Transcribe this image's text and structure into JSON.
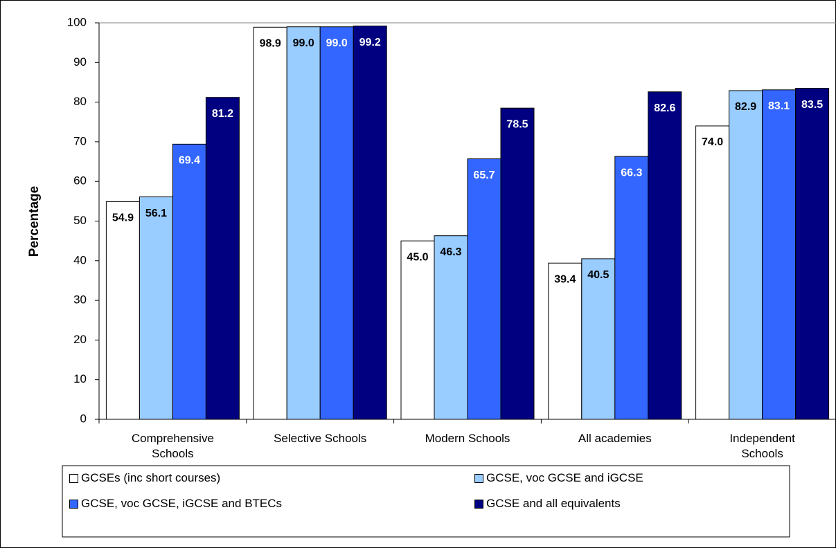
{
  "chart_data": {
    "type": "bar",
    "y_label": "Percentage",
    "categories": [
      "Comprehensive Schools",
      "Selective Schools",
      "Modern Schools",
      "All academies",
      "Independent Schools"
    ],
    "series": [
      {
        "name": "GCSEs (inc short courses)",
        "color": "#ffffff",
        "values": [
          54.9,
          98.9,
          45.0,
          39.4,
          74.0
        ],
        "value_labels": [
          "54.9",
          "98.9",
          "45.0",
          "39.4",
          "74.0"
        ]
      },
      {
        "name": "GCSE, voc GCSE and iGCSE",
        "color": "#99ccff",
        "values": [
          56.1,
          99.0,
          46.3,
          40.5,
          82.9
        ],
        "value_labels": [
          "56.1",
          "99.0",
          "46.3",
          "40.5",
          "82.9"
        ]
      },
      {
        "name": "GCSE, voc GCSE, iGCSE and BTECs",
        "color": "#3366ff",
        "values": [
          69.4,
          99.0,
          65.7,
          66.3,
          83.1
        ],
        "value_labels": [
          "69.4",
          "99.0",
          "65.7",
          "66.3",
          "83.1"
        ]
      },
      {
        "name": "GCSE and all equivalents",
        "color": "#000080",
        "values": [
          81.2,
          99.2,
          78.5,
          82.6,
          83.5
        ],
        "value_labels": [
          "81.2",
          "99.2",
          "78.5",
          "82.6",
          "83.5"
        ]
      }
    ],
    "ylim": [
      0,
      100
    ],
    "yticks": [
      0,
      10,
      20,
      30,
      40,
      50,
      60,
      70,
      80,
      90,
      100
    ],
    "grid": false,
    "legend": "bottom"
  }
}
